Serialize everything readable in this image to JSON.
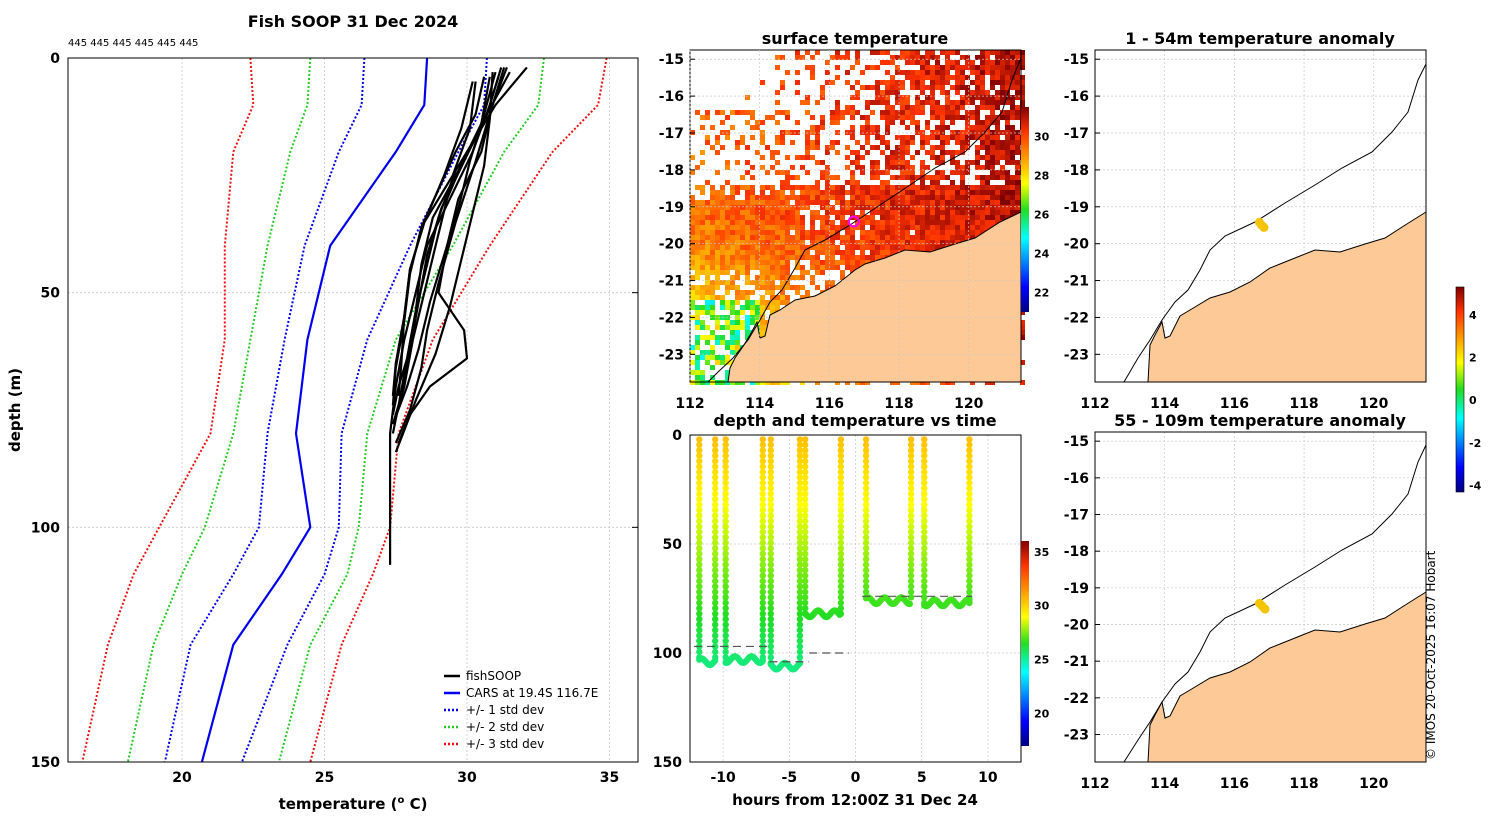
{
  "credit": "© IMOS 20-Oct-2025 16:07 Hobart",
  "colors": {
    "fish": "#000000",
    "cars": "#0000ee",
    "std1": "#0000ee",
    "std2": "#22cc22",
    "std3": "#ee1111",
    "land": "#fcc997",
    "grid": "#c8c8c8",
    "anomaly_dot": "#f5c400",
    "sst_hot": "#b31800",
    "ship_marker": "#ff00ff"
  },
  "chart_data": [
    {
      "id": "profile",
      "type": "line",
      "title": "Fish SOOP 31 Dec 2024",
      "top_annotation": "445 445 445 445 445 445",
      "xlabel_main": "temperature (",
      "xlabel_sup": "o",
      "xlabel_end": " C)",
      "ylabel": "depth (m)",
      "xlim": [
        16,
        36
      ],
      "ylim": [
        150,
        0
      ],
      "xticks": [
        "20",
        "25",
        "30",
        "35"
      ],
      "yticks": [
        "0",
        "50",
        "100",
        "150"
      ],
      "legend": [
        "fishSOOP",
        "CARS at 19.4S 116.7E",
        "+/- 1 std dev",
        "+/- 2 std dev",
        "+/- 3 std dev"
      ],
      "cars_depth": [
        0,
        10,
        20,
        40,
        60,
        80,
        100,
        110,
        125,
        150
      ],
      "cars_mean": [
        28.6,
        28.5,
        27.5,
        25.2,
        24.4,
        24.0,
        24.5,
        23.5,
        21.8,
        20.7
      ],
      "std": {
        "minus1": [
          26.4,
          26.3,
          25.5,
          24.3,
          23.6,
          23.0,
          22.7,
          21.8,
          20.3,
          19.4
        ],
        "plus1": [
          30.7,
          30.6,
          29.7,
          28.0,
          26.5,
          25.6,
          25.5,
          25.0,
          23.7,
          22.1
        ],
        "minus2": [
          24.5,
          24.4,
          23.8,
          23.0,
          22.4,
          21.8,
          20.8,
          20.0,
          19.0,
          18.1
        ],
        "plus2": [
          32.7,
          32.5,
          31.3,
          29.5,
          27.5,
          26.5,
          26.2,
          25.8,
          24.5,
          23.4
        ],
        "minus3": [
          22.4,
          22.5,
          21.8,
          21.5,
          21.5,
          21.0,
          19.2,
          18.3,
          17.4,
          16.5
        ],
        "plus3": [
          34.9,
          34.6,
          33.0,
          30.8,
          28.8,
          27.6,
          27.3,
          26.7,
          25.6,
          24.5
        ]
      },
      "fish_profiles": [
        {
          "depth": [
            2,
            10,
            20,
            30,
            40,
            50,
            60,
            70,
            80,
            90,
            100,
            108
          ],
          "temp": [
            31.2,
            30.8,
            30.2,
            29.4,
            28.6,
            28.2,
            27.8,
            27.5,
            27.3,
            27.3,
            27.3,
            27.3
          ]
        },
        {
          "depth": [
            3,
            12,
            22,
            32,
            42,
            52,
            62,
            72,
            78
          ],
          "temp": [
            31.5,
            30.7,
            29.9,
            29.1,
            28.6,
            28.3,
            28.0,
            27.7,
            27.4
          ]
        },
        {
          "depth": [
            4,
            14,
            24,
            34,
            44,
            54,
            64,
            74,
            80
          ],
          "temp": [
            30.8,
            30.5,
            29.7,
            28.8,
            28.4,
            28.2,
            27.9,
            27.6,
            27.4
          ]
        },
        {
          "depth": [
            2,
            10,
            20,
            30,
            40,
            50,
            60,
            70,
            76
          ],
          "temp": [
            32.1,
            31.0,
            30.0,
            29.3,
            28.9,
            28.5,
            28.1,
            27.8,
            27.5
          ]
        },
        {
          "depth": [
            5,
            15,
            25,
            35,
            45,
            55,
            65,
            72
          ],
          "temp": [
            30.3,
            30.1,
            29.5,
            28.5,
            28.0,
            27.8,
            27.7,
            27.6
          ]
        },
        {
          "depth": [
            3,
            12,
            22,
            32,
            42,
            52,
            62,
            70,
            78
          ],
          "temp": [
            31.0,
            30.6,
            30.1,
            29.7,
            29.2,
            28.7,
            28.3,
            27.9,
            27.4
          ]
        },
        {
          "depth": [
            2,
            10,
            22,
            35,
            48,
            58,
            66,
            75,
            82
          ],
          "temp": [
            31.4,
            30.9,
            30.3,
            29.6,
            29.0,
            28.6,
            28.4,
            28.0,
            27.5
          ]
        },
        {
          "depth": [
            4,
            12,
            20,
            28,
            36,
            46,
            56,
            66,
            74
          ],
          "temp": [
            30.6,
            30.3,
            29.6,
            29.0,
            28.4,
            28.0,
            27.8,
            27.5,
            27.4
          ]
        },
        {
          "depth": [
            3,
            13,
            23,
            33,
            43,
            53,
            63,
            73,
            84
          ],
          "temp": [
            30.9,
            30.8,
            30.6,
            30.2,
            29.8,
            29.4,
            28.9,
            28.2,
            27.5
          ]
        },
        {
          "depth": [
            5,
            15,
            25,
            35,
            45,
            55,
            65,
            72
          ],
          "temp": [
            30.2,
            29.8,
            29.2,
            28.5,
            28.0,
            27.8,
            27.5,
            27.4
          ]
        },
        {
          "depth": [
            2,
            10,
            20,
            30,
            40,
            50,
            58,
            64,
            70,
            76,
            82
          ],
          "temp": [
            31.3,
            30.9,
            30.5,
            29.7,
            29.3,
            29.0,
            29.9,
            30.0,
            28.7,
            28.0,
            27.6
          ]
        },
        {
          "depth": [
            4,
            14,
            24,
            34,
            44,
            54,
            64,
            70,
            76
          ],
          "temp": [
            31.1,
            30.6,
            29.6,
            29.0,
            28.6,
            28.2,
            27.9,
            27.6,
            27.4
          ]
        }
      ]
    },
    {
      "id": "sst_map",
      "type": "heatmap",
      "title": "surface temperature",
      "xlim": [
        112,
        121.5
      ],
      "ylim": [
        -23.75,
        -14.75
      ],
      "xticks": [
        "112",
        "114",
        "116",
        "118",
        "120"
      ],
      "yticks": [
        "-15",
        "-16",
        "-17",
        "-18",
        "-19",
        "-20",
        "-21",
        "-22",
        "-23"
      ],
      "colorbar": {
        "range": [
          21,
          31.5
        ],
        "ticks": [
          "22",
          "24",
          "26",
          "28",
          "30"
        ]
      },
      "ship_position": [
        116.7,
        -19.4
      ]
    },
    {
      "id": "depth_time",
      "type": "scatter",
      "title": "depth and temperature vs time",
      "xlabel": "hours from 12:00Z 31 Dec 24",
      "xlim": [
        -12.5,
        12.5
      ],
      "ylim": [
        150,
        0
      ],
      "xticks": [
        "-10",
        "-5",
        "0",
        "5",
        "10"
      ],
      "yticks": [
        "0",
        "50",
        "100",
        "150"
      ],
      "colorbar": {
        "range": [
          17,
          36
        ],
        "ticks": [
          "20",
          "25",
          "30",
          "35"
        ]
      },
      "dives": [
        {
          "down": -11.8,
          "up": -10.6,
          "bottom": 104
        },
        {
          "down": -9.8,
          "up": -7.0,
          "bottom": 103
        },
        {
          "down": -6.4,
          "up": -4.2,
          "bottom": 106
        },
        {
          "down": -3.8,
          "up": -1.1,
          "bottom": 82
        },
        {
          "down": 0.8,
          "up": 4.2,
          "bottom": 76
        },
        {
          "down": 5.2,
          "up": 8.6,
          "bottom": 77
        }
      ],
      "bottom_segments": [
        {
          "x0": -12.2,
          "x1": -6.5,
          "depth": 97
        },
        {
          "x0": -6.5,
          "x1": -3.5,
          "depth": 104
        },
        {
          "x0": -3.5,
          "x1": -0.5,
          "depth": 100
        },
        {
          "x0": 0.5,
          "x1": 8.8,
          "depth": 74
        }
      ]
    },
    {
      "id": "anom_upper",
      "type": "scatter",
      "title": "1 - 54m temperature anomaly",
      "xlim": [
        112,
        121.5
      ],
      "ylim": [
        -23.75,
        -14.75
      ],
      "xticks": [
        "112",
        "114",
        "116",
        "118",
        "120"
      ],
      "yticks": [
        "-15",
        "-16",
        "-17",
        "-18",
        "-19",
        "-20",
        "-21",
        "-22",
        "-23"
      ],
      "points": [
        [
          116.72,
          -19.42
        ],
        [
          116.78,
          -19.5
        ],
        [
          116.85,
          -19.56
        ]
      ]
    },
    {
      "id": "anom_lower",
      "type": "scatter",
      "title": "55 - 109m temperature anomaly",
      "xlim": [
        112,
        121.5
      ],
      "ylim": [
        -23.75,
        -14.75
      ],
      "xticks": [
        "112",
        "114",
        "116",
        "118",
        "120"
      ],
      "yticks": [
        "-15",
        "-16",
        "-17",
        "-18",
        "-19",
        "-20",
        "-21",
        "-22",
        "-23"
      ],
      "points": [
        [
          116.72,
          -19.42
        ],
        [
          116.8,
          -19.5
        ],
        [
          116.88,
          -19.58
        ]
      ]
    },
    {
      "id": "anom_colorbar",
      "type": "heatmap",
      "range": [
        -4.3,
        5.3
      ],
      "ticks": [
        "4",
        "2",
        "0",
        "-2",
        "-4"
      ]
    }
  ]
}
